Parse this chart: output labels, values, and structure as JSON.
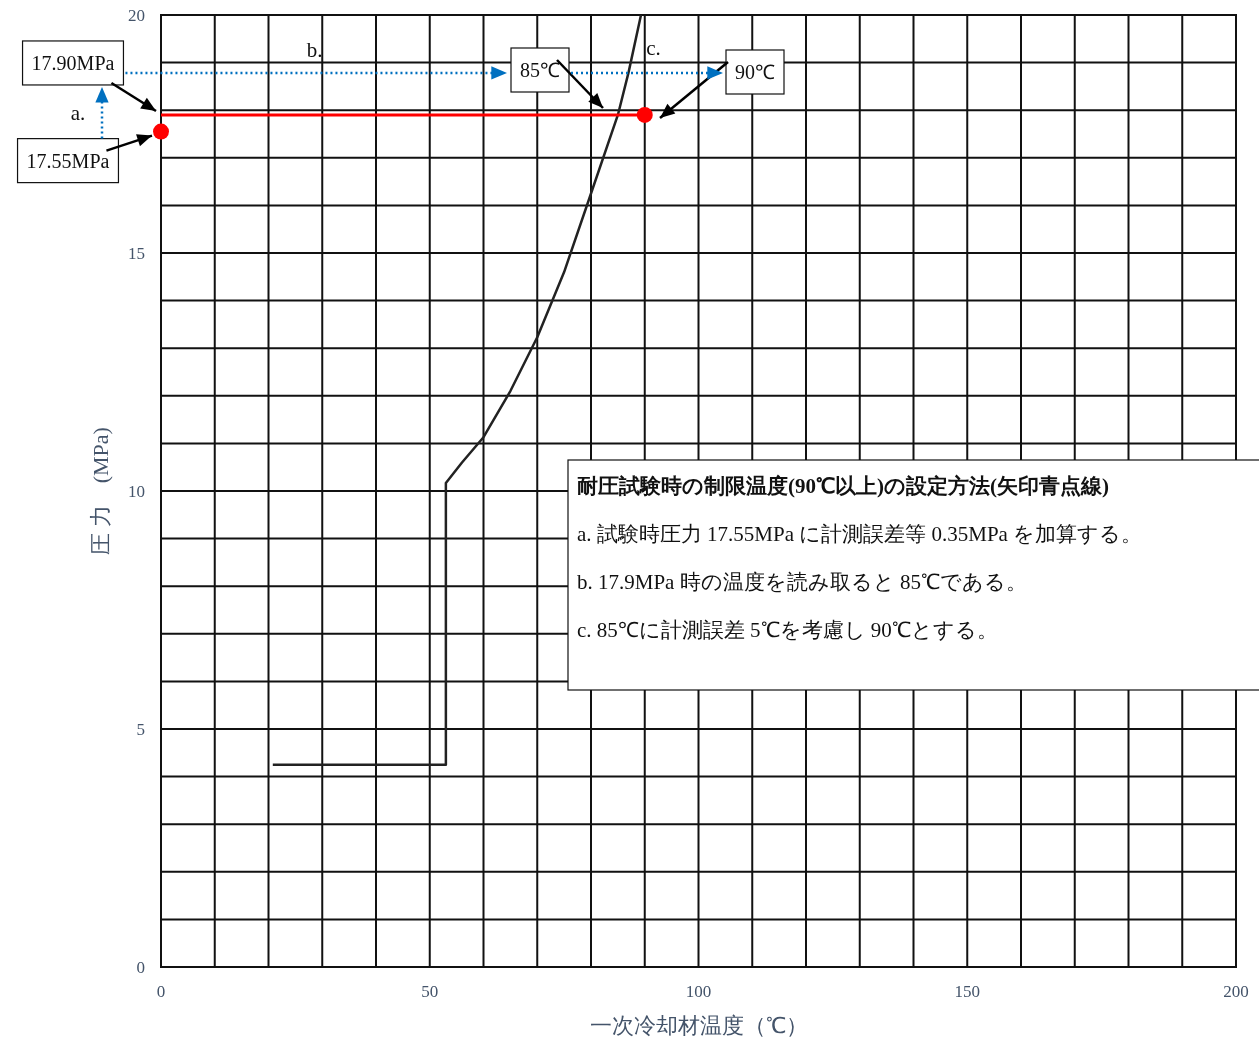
{
  "chart_data": {
    "type": "line",
    "xlabel": "一次冷却材温度（℃）",
    "ylabel": "圧 力　(MPa)",
    "xlim": [
      0,
      200
    ],
    "ylim": [
      0,
      20
    ],
    "xticks": [
      0,
      {
        "value": 10,
        "label": null
      },
      {
        "value": 20,
        "label": null
      },
      {
        "value": 30,
        "label": null
      },
      {
        "value": 40,
        "label": null
      },
      50,
      {
        "value": 60,
        "label": null
      },
      {
        "value": 70,
        "label": null
      },
      {
        "value": 80,
        "label": null
      },
      {
        "value": 90,
        "label": null
      },
      100,
      {
        "value": 110,
        "label": null
      },
      {
        "value": 120,
        "label": null
      },
      {
        "value": 130,
        "label": null
      },
      {
        "value": 140,
        "label": null
      },
      150,
      {
        "value": 160,
        "label": null
      },
      {
        "value": 170,
        "label": null
      },
      {
        "value": 180,
        "label": null
      },
      {
        "value": 190,
        "label": null
      },
      200
    ],
    "yticks": [
      0,
      {
        "value": 1,
        "label": null
      },
      {
        "value": 2,
        "label": null
      },
      {
        "value": 3,
        "label": null
      },
      {
        "value": 4,
        "label": null
      },
      5,
      {
        "value": 6,
        "label": null
      },
      {
        "value": 7,
        "label": null
      },
      {
        "value": 8,
        "label": null
      },
      {
        "value": 9,
        "label": null
      },
      10,
      {
        "value": 11,
        "label": null
      },
      {
        "value": 12,
        "label": null
      },
      {
        "value": 13,
        "label": null
      },
      {
        "value": 14,
        "label": null
      },
      15,
      {
        "value": 16,
        "label": null
      },
      {
        "value": 17,
        "label": null
      },
      {
        "value": 18,
        "label": null
      },
      {
        "value": 19,
        "label": null
      },
      20
    ],
    "grid": true,
    "series": [
      {
        "type": "line",
        "color": "#222222",
        "x": [
          20.8,
          53,
          53,
          56,
          60,
          65,
          70,
          75,
          80,
          85,
          87,
          89.3
        ],
        "values": [
          4.25,
          4.25,
          10.17,
          10.6,
          11.13,
          12.1,
          13.23,
          14.6,
          16.25,
          17.9,
          18.8,
          20
        ]
      },
      {
        "type": "line",
        "color": "#ff0000",
        "x": [
          0,
          90
        ],
        "values": [
          17.9,
          17.9
        ]
      },
      {
        "type": "scatter",
        "color": "#ff0000",
        "marker": "circle",
        "x": [
          0,
          90
        ],
        "values": [
          17.55,
          17.9
        ]
      }
    ],
    "annotations": [
      {
        "text": "17.90MPa",
        "x": 0,
        "y": 17.9
      },
      {
        "text": "17.55MPa",
        "x": 0,
        "y": 17.55
      },
      "85℃",
      "90℃",
      "a.",
      "b.",
      "c.",
      "耐圧試験時の制限温度(90℃以上)の設定方法(矢印青点線)",
      "a.  試験時圧力 17.55MPa に計測誤差等 0.35MPa を加算する。",
      "b. 17.9MPa 時の温度を読み取ると 85℃である。",
      "c. 85℃に計測誤差 5℃を考慮し 90℃とする。"
    ]
  }
}
